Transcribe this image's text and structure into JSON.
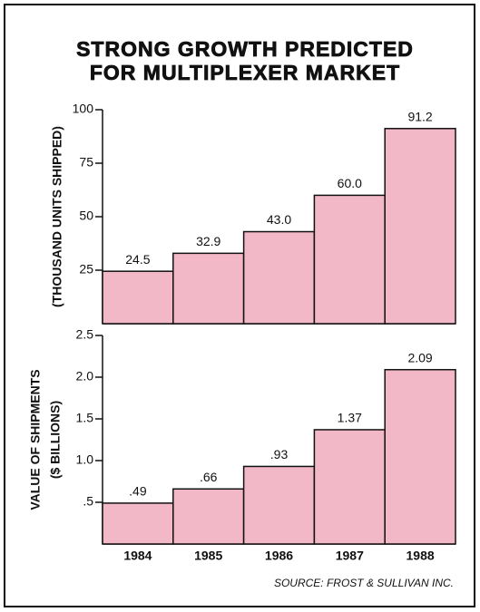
{
  "title": [
    "STRONG GROWTH PREDICTED",
    "FOR MULTIPLEXER MARKET"
  ],
  "source": "SOURCE: FROST & SULLIVAN INC.",
  "chart_data": [
    {
      "type": "bar",
      "ylabel": [
        "(THOUSAND UNITS SHIPPED)"
      ],
      "color": "#f3b8c8",
      "values": [
        24.5,
        32.9,
        43.0,
        60.0,
        91.2
      ],
      "value_labels": [
        "24.5",
        "32.9",
        "43.0",
        "60.0",
        "91.2"
      ],
      "ylim": [
        0,
        100
      ],
      "yticks": [
        25,
        50,
        75,
        100
      ]
    },
    {
      "type": "bar",
      "ylabel": [
        "VALUE OF SHIPMENTS",
        "($ BILLIONS)"
      ],
      "color": "#f3b8c8",
      "categories": [
        "1984",
        "1985",
        "1986",
        "1987",
        "1988"
      ],
      "values": [
        0.49,
        0.66,
        0.93,
        1.37,
        2.09
      ],
      "value_labels": [
        ".49",
        ".66",
        ".93",
        "1.37",
        "2.09"
      ],
      "ylim": [
        0,
        2.5
      ],
      "yticks": [
        {
          "value": 0.5,
          "label": ".5"
        },
        {
          "value": 1.0,
          "label": "1.0"
        },
        {
          "value": 1.5,
          "label": "1.5"
        },
        {
          "value": 2.0,
          "label": "2.0"
        },
        {
          "value": 2.5,
          "label": "2.5"
        }
      ]
    }
  ]
}
